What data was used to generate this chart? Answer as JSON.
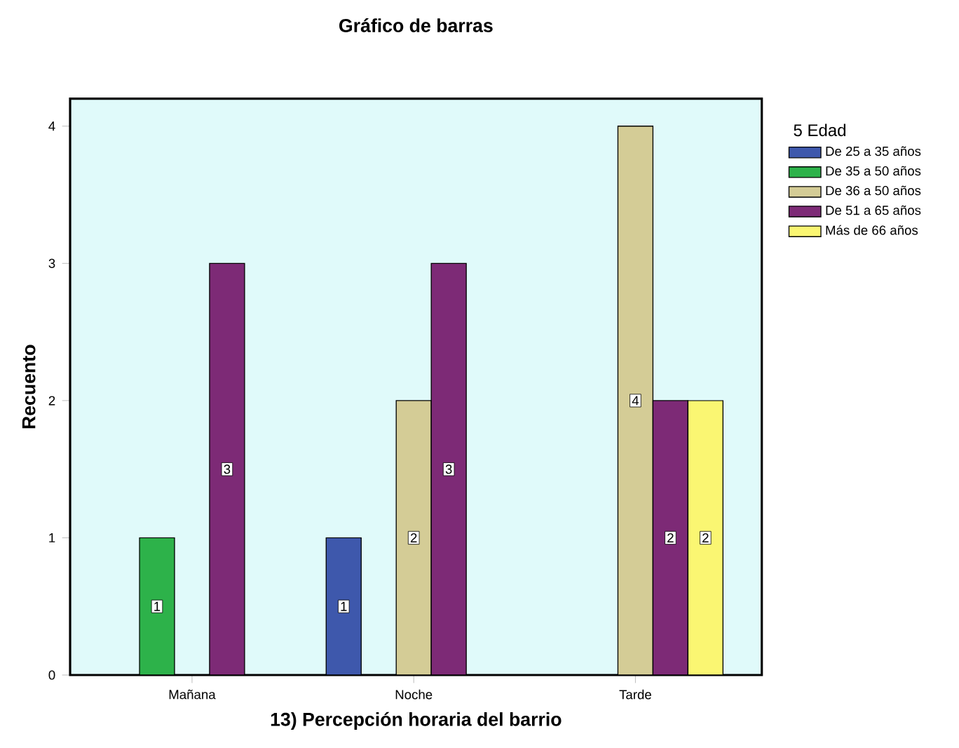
{
  "chart_data": {
    "type": "bar",
    "title": "Gráfico de barras",
    "xlabel": "13) Percepción horaria del barrio",
    "ylabel": "Recuento",
    "legend_title": "5 Edad",
    "categories": [
      "Mañana",
      "Noche",
      "Tarde"
    ],
    "series": [
      {
        "name": "De 25 a 35 años",
        "color": "#3e58ac",
        "values": [
          null,
          1,
          null
        ]
      },
      {
        "name": "De 35 a 50 años",
        "color": "#2db24a",
        "values": [
          1,
          null,
          null
        ]
      },
      {
        "name": "De 36 a 50 años",
        "color": "#d4cc96",
        "values": [
          null,
          2,
          4
        ]
      },
      {
        "name": "De 51 a 65 años",
        "color": "#7d2a76",
        "values": [
          3,
          3,
          2
        ]
      },
      {
        "name": "Más de 66 años",
        "color": "#faf672",
        "values": [
          null,
          null,
          2
        ]
      }
    ],
    "ylim": [
      0,
      4.2
    ],
    "yticks": [
      0,
      1,
      2,
      3,
      4
    ],
    "legend": "right",
    "data_labels": true
  }
}
